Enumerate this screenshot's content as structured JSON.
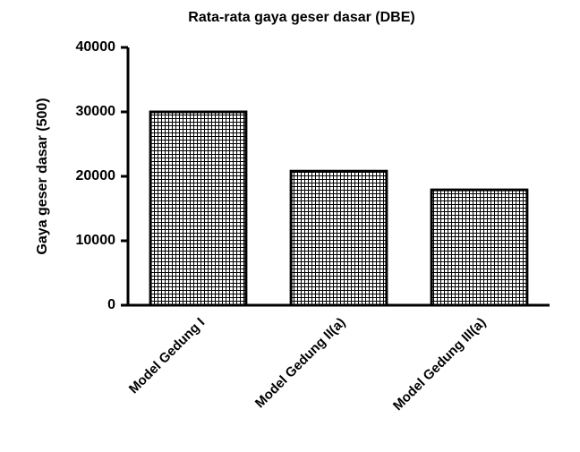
{
  "chart_data": {
    "type": "bar",
    "title": "Rata-rata gaya geser dasar (DBE)",
    "y_label": "Gaya geser dasar (500)",
    "categories": [
      "Model Gedung I",
      "Model Gedung II(a)",
      "Model Gedung III(a)"
    ],
    "values": [
      30000,
      20800,
      17900
    ],
    "color": "#000000",
    "ylim": [
      0,
      40000
    ],
    "yticks": [
      0,
      10000,
      20000,
      30000,
      40000
    ],
    "grid": false
  }
}
